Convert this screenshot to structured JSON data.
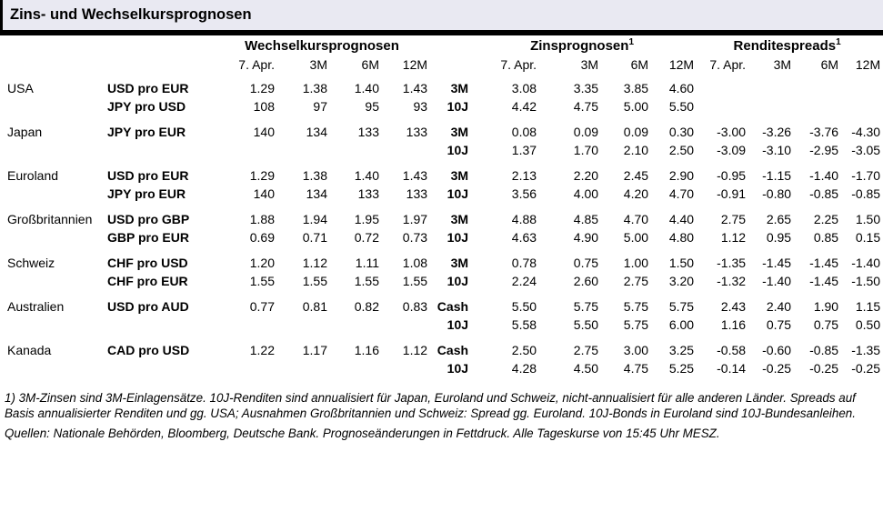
{
  "title": "Zins- und Wechselkursprognosen",
  "colors": {
    "title_bg": "#e9e9f2",
    "rule": "#000000",
    "text": "#000000"
  },
  "groups": {
    "fx": "Wechselkursprognosen",
    "rates": "Zinsprognosen",
    "spreads": "Renditespreads",
    "footnote_mark": "1"
  },
  "subheaders": [
    "7. Apr.",
    "3M",
    "6M",
    "12M"
  ],
  "chart_data": {
    "type": "table",
    "title": "Zins- und Wechselkursprognosen",
    "column_groups": [
      "Wechselkursprognosen",
      "Zinsprognosen",
      "Renditespreads"
    ],
    "columns_per_group": [
      "7. Apr.",
      "3M",
      "6M",
      "12M"
    ]
  },
  "rows": [
    {
      "first": true,
      "country": "USA",
      "pair": "USD pro EUR",
      "fx": [
        "1.29",
        "1.38",
        "1.40",
        "1.43"
      ],
      "tenor": "3M",
      "rates": [
        "3.08",
        "3.35",
        "3.85",
        "4.60"
      ],
      "spreads": [
        "",
        "",
        "",
        ""
      ]
    },
    {
      "first": false,
      "country": "",
      "pair": "JPY pro USD",
      "fx": [
        "108",
        "97",
        "95",
        "93"
      ],
      "tenor": "10J",
      "rates": [
        "4.42",
        "4.75",
        "5.00",
        "5.50"
      ],
      "spreads": [
        "",
        "",
        "",
        ""
      ]
    },
    {
      "first": true,
      "country": "Japan",
      "pair": "JPY pro EUR",
      "fx": [
        "140",
        "134",
        "133",
        "133"
      ],
      "tenor": "3M",
      "rates": [
        "0.08",
        "0.09",
        "0.09",
        "0.30"
      ],
      "spreads": [
        "-3.00",
        "-3.26",
        "-3.76",
        "-4.30"
      ]
    },
    {
      "first": false,
      "country": "",
      "pair": "",
      "fx": [
        "",
        "",
        "",
        ""
      ],
      "tenor": "10J",
      "rates": [
        "1.37",
        "1.70",
        "2.10",
        "2.50"
      ],
      "spreads": [
        "-3.09",
        "-3.10",
        "-2.95",
        "-3.05"
      ]
    },
    {
      "first": true,
      "country": "Euroland",
      "pair": "USD pro EUR",
      "fx": [
        "1.29",
        "1.38",
        "1.40",
        "1.43"
      ],
      "tenor": "3M",
      "rates": [
        "2.13",
        "2.20",
        "2.45",
        "2.90"
      ],
      "spreads": [
        "-0.95",
        "-1.15",
        "-1.40",
        "-1.70"
      ]
    },
    {
      "first": false,
      "country": "",
      "pair": "JPY pro EUR",
      "fx": [
        "140",
        "134",
        "133",
        "133"
      ],
      "tenor": "10J",
      "rates": [
        "3.56",
        "4.00",
        "4.20",
        "4.70"
      ],
      "spreads": [
        "-0.91",
        "-0.80",
        "-0.85",
        "-0.85"
      ]
    },
    {
      "first": true,
      "country": "Großbritannien",
      "pair": "USD pro GBP",
      "fx": [
        "1.88",
        "1.94",
        "1.95",
        "1.97"
      ],
      "tenor": "3M",
      "rates": [
        "4.88",
        "4.85",
        "4.70",
        "4.40"
      ],
      "spreads": [
        "2.75",
        "2.65",
        "2.25",
        "1.50"
      ]
    },
    {
      "first": false,
      "country": "",
      "pair": "GBP pro EUR",
      "fx": [
        "0.69",
        "0.71",
        "0.72",
        "0.73"
      ],
      "tenor": "10J",
      "rates": [
        "4.63",
        "4.90",
        "5.00",
        "4.80"
      ],
      "spreads": [
        "1.12",
        "0.95",
        "0.85",
        "0.15"
      ]
    },
    {
      "first": true,
      "country": "Schweiz",
      "pair": "CHF pro USD",
      "fx": [
        "1.20",
        "1.12",
        "1.11",
        "1.08"
      ],
      "tenor": "3M",
      "rates": [
        "0.78",
        "0.75",
        "1.00",
        "1.50"
      ],
      "spreads": [
        "-1.35",
        "-1.45",
        "-1.45",
        "-1.40"
      ]
    },
    {
      "first": false,
      "country": "",
      "pair": "CHF pro EUR",
      "fx": [
        "1.55",
        "1.55",
        "1.55",
        "1.55"
      ],
      "tenor": "10J",
      "rates": [
        "2.24",
        "2.60",
        "2.75",
        "3.20"
      ],
      "spreads": [
        "-1.32",
        "-1.40",
        "-1.45",
        "-1.50"
      ]
    },
    {
      "first": true,
      "country": "Australien",
      "pair": "USD pro AUD",
      "fx": [
        "0.77",
        "0.81",
        "0.82",
        "0.83"
      ],
      "tenor": "Cash",
      "rates": [
        "5.50",
        "5.75",
        "5.75",
        "5.75"
      ],
      "spreads": [
        "2.43",
        "2.40",
        "1.90",
        "1.15"
      ]
    },
    {
      "first": false,
      "country": "",
      "pair": "",
      "fx": [
        "",
        "",
        "",
        ""
      ],
      "tenor": "10J",
      "rates": [
        "5.58",
        "5.50",
        "5.75",
        "6.00"
      ],
      "spreads": [
        "1.16",
        "0.75",
        "0.75",
        "0.50"
      ]
    },
    {
      "first": true,
      "country": "Kanada",
      "pair": "CAD pro USD",
      "fx": [
        "1.22",
        "1.17",
        "1.16",
        "1.12"
      ],
      "tenor": "Cash",
      "rates": [
        "2.50",
        "2.75",
        "3.00",
        "3.25"
      ],
      "spreads": [
        "-0.58",
        "-0.60",
        "-0.85",
        "-1.35"
      ]
    },
    {
      "first": false,
      "country": "",
      "pair": "",
      "fx": [
        "",
        "",
        "",
        ""
      ],
      "tenor": "10J",
      "rates": [
        "4.28",
        "4.50",
        "4.75",
        "5.25"
      ],
      "spreads": [
        "-0.14",
        "-0.25",
        "-0.25",
        "-0.25"
      ]
    }
  ],
  "footnote1": "1) 3M-Zinsen sind 3M-Einlagensätze. 10J-Renditen sind annualisiert für Japan, Euroland und Schweiz, nicht-annualisiert für alle anderen Länder. Spreads auf Basis annualisierter Renditen und gg. USA; Ausnahmen Großbritannien und Schweiz: Spread gg. Euroland. 10J-Bonds in Euroland sind 10J-Bundesanleihen.",
  "footnote2": "Quellen: Nationale Behörden, Bloomberg, Deutsche Bank. Prognoseänderungen in Fettdruck. Alle Tageskurse von 15:45 Uhr MESZ."
}
